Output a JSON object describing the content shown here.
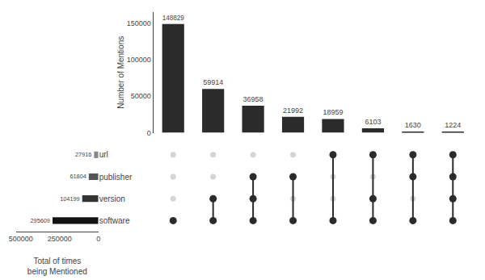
{
  "chart_data": {
    "type": "upset",
    "ylabel": "Number of Mentions",
    "categories": [
      null,
      null,
      null,
      null,
      null,
      null,
      null,
      null
    ],
    "values": [
      148829,
      59914,
      36958,
      21992,
      18959,
      6103,
      1630,
      1224
    ],
    "color": "#2b2b2b",
    "data_labels": true,
    "ylim": [
      0,
      165000
    ],
    "yticks": [
      0,
      50000,
      100000,
      150000
    ],
    "grid": false,
    "sets": [
      {
        "name": "url",
        "total": 27916,
        "color": "#888888",
        "membership": [
          0,
          0,
          0,
          0,
          1,
          1,
          1,
          1
        ]
      },
      {
        "name": "publisher",
        "total": 61804,
        "color": "#555555",
        "membership": [
          0,
          0,
          1,
          1,
          0,
          0,
          1,
          1
        ]
      },
      {
        "name": "version",
        "total": 104199,
        "color": "#333333",
        "membership": [
          0,
          1,
          1,
          0,
          0,
          1,
          0,
          1
        ]
      },
      {
        "name": "software",
        "total": 295609,
        "color": "#111111",
        "membership": [
          1,
          1,
          1,
          1,
          1,
          1,
          1,
          1
        ]
      }
    ],
    "xlabel": "Total of times\nbeing Mentioned",
    "xlim": [
      530000,
      0
    ],
    "xticks": [
      500000,
      250000,
      0
    ]
  }
}
